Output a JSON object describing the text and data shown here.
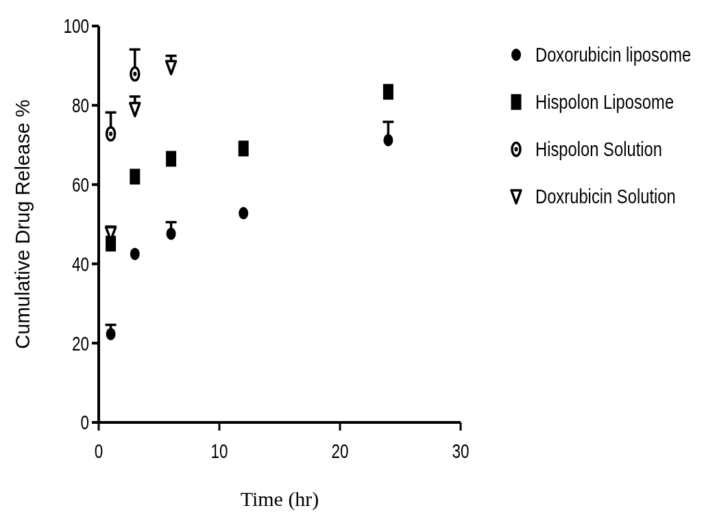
{
  "chart_data": {
    "type": "scatter",
    "xlabel": "Time (hr)",
    "ylabel": "Cumulative Drug Release %",
    "xlim": [
      0,
      30
    ],
    "ylim": [
      0,
      100
    ],
    "xticks": [
      0,
      10,
      20,
      30
    ],
    "yticks": [
      0,
      20,
      40,
      60,
      80,
      100
    ],
    "grid": false,
    "legend": "right",
    "series": [
      {
        "name": "Doxorubicin liposome",
        "color": "#000000",
        "marker": "circle",
        "x": [
          1,
          3,
          6,
          12,
          24
        ],
        "values": [
          22.3,
          42.5,
          47.6,
          52.8,
          71.2
        ],
        "errors": [
          [
            22.3,
            24.6
          ],
          null,
          [
            47.6,
            50.5
          ],
          null,
          [
            71.2,
            75.8
          ]
        ]
      },
      {
        "name": "Hispolon Liposome",
        "color": "#000000",
        "marker": "square",
        "x": [
          1,
          3,
          6,
          12,
          24
        ],
        "values": [
          45.1,
          62,
          66.5,
          69.1,
          83.4
        ]
      },
      {
        "name": "Hispolon Solution",
        "color": "#000000",
        "marker": "circle",
        "x": [
          1,
          3
        ],
        "values": [
          72.8,
          87.9
        ],
        "errors": [
          [
            72.8,
            78.2
          ],
          [
            87.9,
            94.1
          ]
        ]
      },
      {
        "name": "Doxrubicin Solution",
        "color": "#000000",
        "marker": "triangle-down",
        "x": [
          1,
          3,
          6
        ],
        "values": [
          47.7,
          79,
          89.6
        ],
        "errors": [
          [
            47.7,
            49.4
          ],
          [
            79,
            82.2
          ],
          [
            89.6,
            92.5
          ]
        ]
      }
    ]
  }
}
